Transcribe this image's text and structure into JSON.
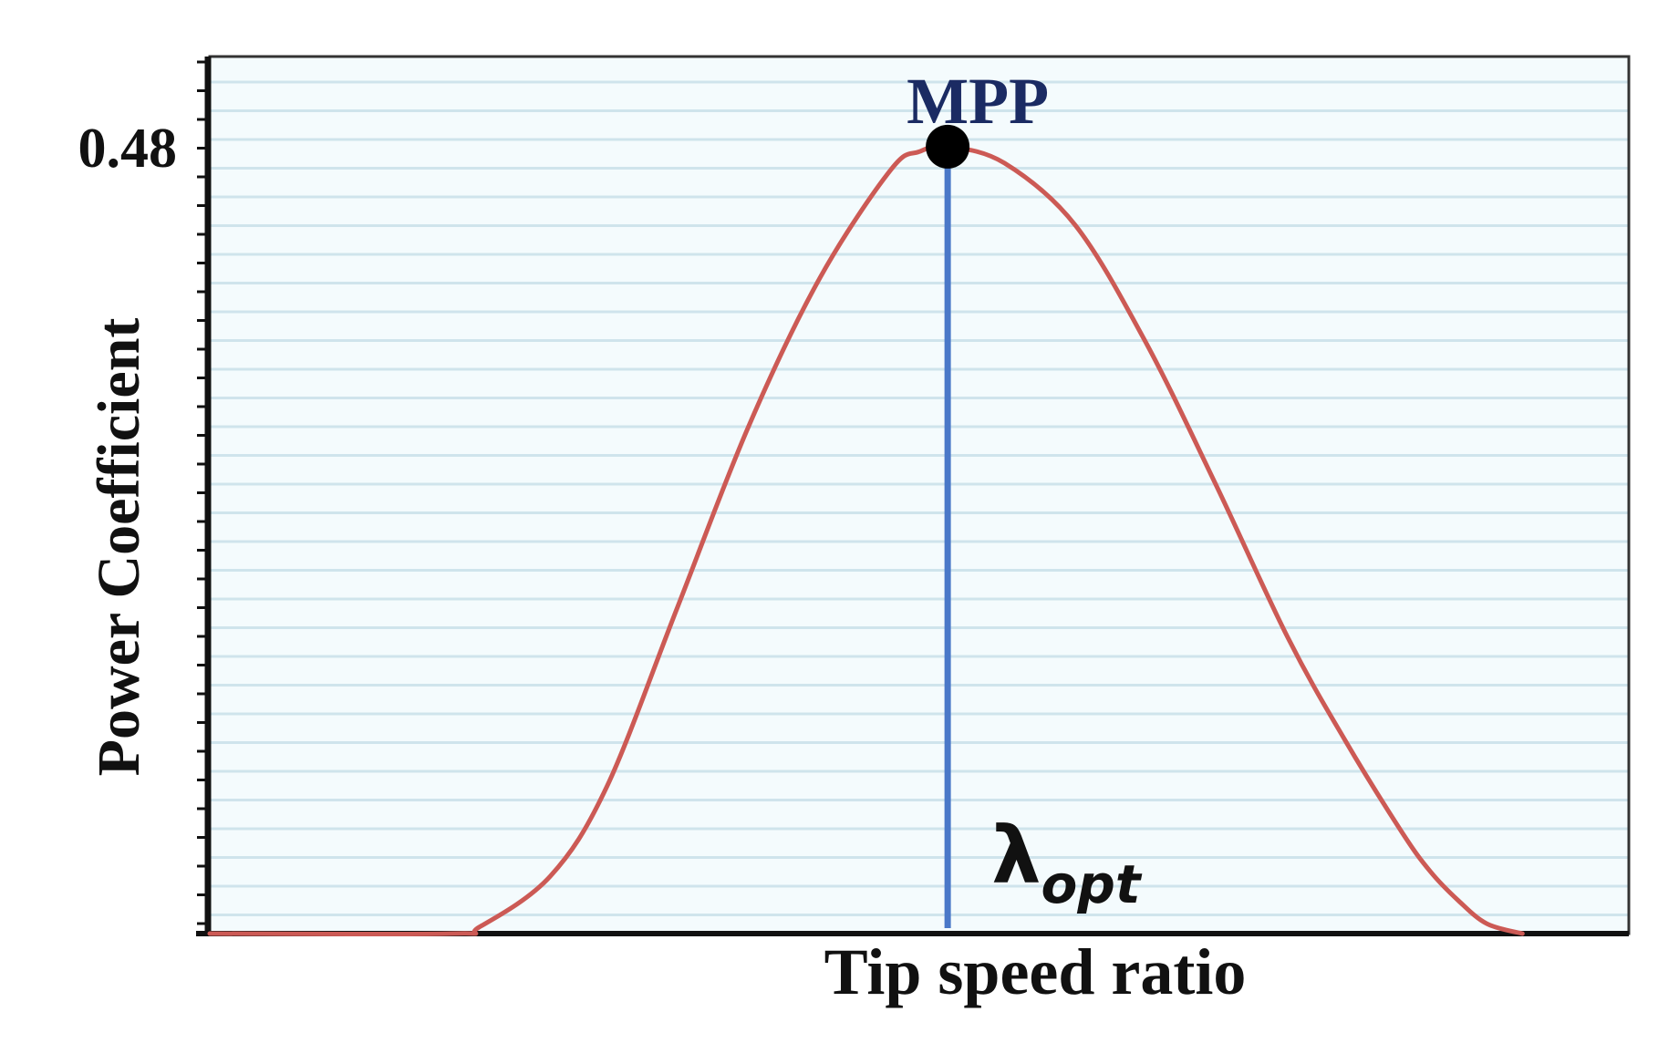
{
  "chart_data": {
    "type": "line",
    "title": "",
    "xlabel": "Tip speed ratio",
    "ylabel": "Power Coefficient",
    "y_tick_labels": [
      {
        "value": 0.48,
        "label": "0.48"
      }
    ],
    "xlim": [
      0,
      1
    ],
    "ylim": [
      0,
      0.535
    ],
    "x_tick_labels_shown": false,
    "grid": "horizontal",
    "series": [
      {
        "color": "#cc5a55",
        "x": [
          0.0,
          0.17,
          0.19,
          0.24,
          0.28,
          0.33,
          0.38,
          0.43,
          0.48,
          0.5,
          0.52,
          0.56,
          0.61,
          0.66,
          0.71,
          0.76,
          0.8,
          0.84,
          0.86,
          0.88,
          0.9,
          0.925
        ],
        "y": [
          0.0,
          0.0,
          0.004,
          0.035,
          0.09,
          0.2,
          0.31,
          0.4,
          0.466,
          0.477,
          0.48,
          0.47,
          0.432,
          0.36,
          0.272,
          0.18,
          0.118,
          0.062,
          0.038,
          0.02,
          0.006,
          0.0
        ]
      }
    ],
    "annotations": {
      "mpp_label": "MPP",
      "mpp_point": {
        "x": 0.52,
        "y": 0.48
      },
      "lambda_symbol": "λ",
      "lambda_subscript": "opt",
      "vertical_line": {
        "x": 0.52,
        "color": "#4a78c8"
      }
    },
    "colors": {
      "grid": "#cfe4ec",
      "plot_background": "#f4fbfd",
      "mpp_label": "#1b2b63",
      "axis": "#111111"
    }
  }
}
